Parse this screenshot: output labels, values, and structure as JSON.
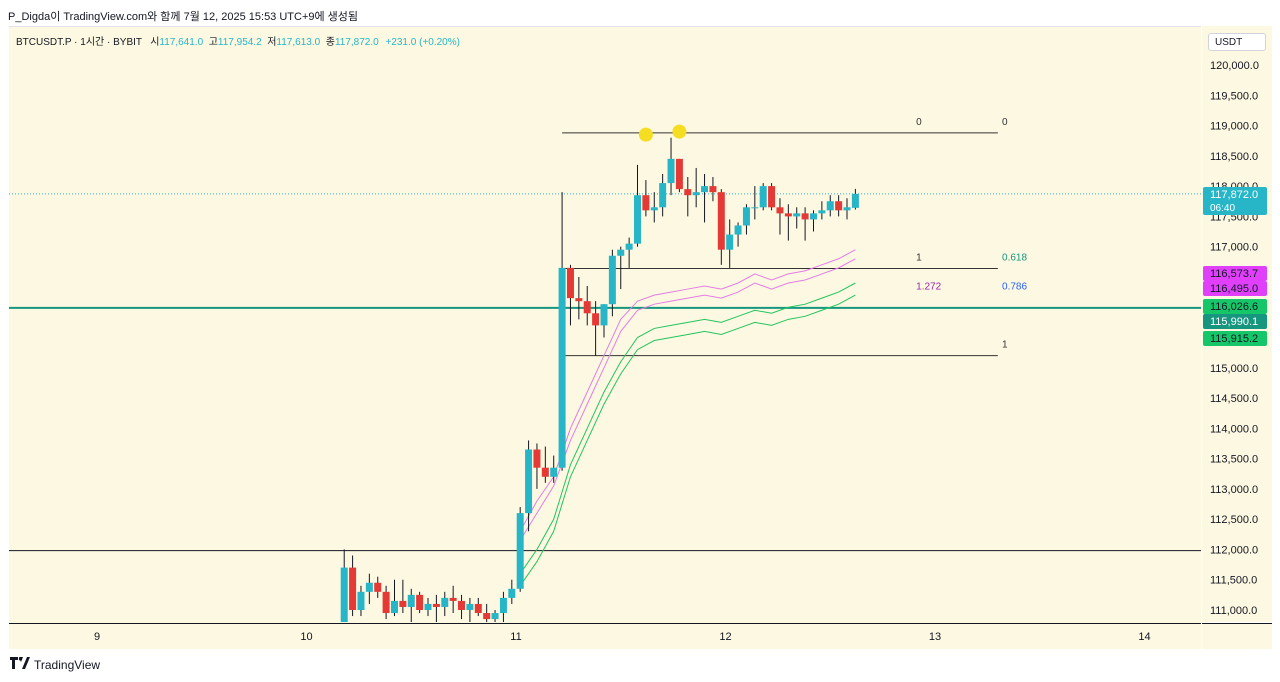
{
  "header": {
    "caption": "P_Digda이 TradingView.com와 함께 7월 12, 2025 15:53 UTC+9에 생성됨"
  },
  "legend": {
    "symbol": "BTCUSDT.P · 1시간 · BYBIT",
    "open_label": "시",
    "open": "117,641.0",
    "high_label": "고",
    "high": "117,954.2",
    "low_label": "저",
    "low": "117,613.0",
    "close_label": "종",
    "close": "117,872.0",
    "change": "+231.0 (+0.20%)"
  },
  "currency": "USDT",
  "footer": {
    "brand": "TradingView",
    "logo": "tradingview-logo-icon"
  },
  "colors": {
    "up": "#26b6c8",
    "down": "#e53935",
    "background": "#fdf8e1",
    "horizontal_line": "#16967f",
    "upper_band": "#e27ee6",
    "lower_band": "#22c55e",
    "marker": "#f5dd22",
    "fib_line": "#333333"
  },
  "chart_data": {
    "type": "candlestick",
    "title": "",
    "xlabel": "",
    "ylabel": "",
    "ylim": [
      110800,
      120400
    ],
    "x_ticks": [
      "9",
      "10",
      "11",
      "12",
      "13",
      "14"
    ],
    "y_ticks": [
      "111,000.0",
      "111,500.0",
      "112,000.0",
      "112,500.0",
      "113,000.0",
      "113,500.0",
      "114,000.0",
      "114,500.0",
      "115,000.0",
      "115,500.0",
      "116,000.0",
      "116,500.0",
      "117,000.0",
      "117,500.0",
      "118,000.0",
      "118,500.0",
      "119,000.0",
      "119,500.0",
      "120,000.0"
    ],
    "x_unit": "days, July 2025",
    "candles": [
      {
        "t": 10.18,
        "o": 110800,
        "h": 112000,
        "l": 110800,
        "c": 111700
      },
      {
        "t": 10.22,
        "o": 111700,
        "h": 111900,
        "l": 110900,
        "c": 111000
      },
      {
        "t": 10.26,
        "o": 111000,
        "h": 111400,
        "l": 110900,
        "c": 111300
      },
      {
        "t": 10.3,
        "o": 111300,
        "h": 111600,
        "l": 111100,
        "c": 111450
      },
      {
        "t": 10.34,
        "o": 111450,
        "h": 111550,
        "l": 111200,
        "c": 111300
      },
      {
        "t": 10.38,
        "o": 111300,
        "h": 111400,
        "l": 110850,
        "c": 110950
      },
      {
        "t": 10.42,
        "o": 110950,
        "h": 111500,
        "l": 110900,
        "c": 111150
      },
      {
        "t": 10.46,
        "o": 111150,
        "h": 111500,
        "l": 110950,
        "c": 111050
      },
      {
        "t": 10.5,
        "o": 111050,
        "h": 111350,
        "l": 110800,
        "c": 111250
      },
      {
        "t": 10.54,
        "o": 111250,
        "h": 111300,
        "l": 110950,
        "c": 111000
      },
      {
        "t": 10.58,
        "o": 111000,
        "h": 111200,
        "l": 110900,
        "c": 111100
      },
      {
        "t": 10.62,
        "o": 111100,
        "h": 111250,
        "l": 110800,
        "c": 111050
      },
      {
        "t": 10.66,
        "o": 111050,
        "h": 111300,
        "l": 110900,
        "c": 111200
      },
      {
        "t": 10.7,
        "o": 111200,
        "h": 111400,
        "l": 110950,
        "c": 111150
      },
      {
        "t": 10.74,
        "o": 111150,
        "h": 111250,
        "l": 110850,
        "c": 111000
      },
      {
        "t": 10.78,
        "o": 111000,
        "h": 111200,
        "l": 110800,
        "c": 111100
      },
      {
        "t": 10.82,
        "o": 111100,
        "h": 111200,
        "l": 110900,
        "c": 110950
      },
      {
        "t": 10.86,
        "o": 110950,
        "h": 111100,
        "l": 110700,
        "c": 110850
      },
      {
        "t": 10.9,
        "o": 110850,
        "h": 111000,
        "l": 110700,
        "c": 110950
      },
      {
        "t": 10.94,
        "o": 110950,
        "h": 111300,
        "l": 110800,
        "c": 111200
      },
      {
        "t": 10.98,
        "o": 111200,
        "h": 111500,
        "l": 111100,
        "c": 111350
      },
      {
        "t": 11.02,
        "o": 111350,
        "h": 112700,
        "l": 111300,
        "c": 112600
      },
      {
        "t": 11.06,
        "o": 112600,
        "h": 113800,
        "l": 112300,
        "c": 113650
      },
      {
        "t": 11.1,
        "o": 113650,
        "h": 113750,
        "l": 113000,
        "c": 113350
      },
      {
        "t": 11.14,
        "o": 113350,
        "h": 113700,
        "l": 113100,
        "c": 113200
      },
      {
        "t": 11.18,
        "o": 113200,
        "h": 113550,
        "l": 113100,
        "c": 113350
      },
      {
        "t": 11.22,
        "o": 113350,
        "h": 117900,
        "l": 113300,
        "c": 116650
      },
      {
        "t": 11.26,
        "o": 116650,
        "h": 116700,
        "l": 115700,
        "c": 116150
      },
      {
        "t": 11.3,
        "o": 116150,
        "h": 116500,
        "l": 115800,
        "c": 116100
      },
      {
        "t": 11.34,
        "o": 116100,
        "h": 116350,
        "l": 115700,
        "c": 115900
      },
      {
        "t": 11.38,
        "o": 115900,
        "h": 116100,
        "l": 115200,
        "c": 115700
      },
      {
        "t": 11.42,
        "o": 115700,
        "h": 116050,
        "l": 115500,
        "c": 116050
      },
      {
        "t": 11.46,
        "o": 116050,
        "h": 116950,
        "l": 115850,
        "c": 116850
      },
      {
        "t": 11.5,
        "o": 116850,
        "h": 117000,
        "l": 116300,
        "c": 116950
      },
      {
        "t": 11.54,
        "o": 116950,
        "h": 117150,
        "l": 116650,
        "c": 117050
      },
      {
        "t": 11.58,
        "o": 117050,
        "h": 118350,
        "l": 117000,
        "c": 117850
      },
      {
        "t": 11.62,
        "o": 117850,
        "h": 118100,
        "l": 117500,
        "c": 117600
      },
      {
        "t": 11.66,
        "o": 117600,
        "h": 117900,
        "l": 117400,
        "c": 117650
      },
      {
        "t": 11.7,
        "o": 117650,
        "h": 118200,
        "l": 117500,
        "c": 118050
      },
      {
        "t": 11.74,
        "o": 118050,
        "h": 118800,
        "l": 117850,
        "c": 118450
      },
      {
        "t": 11.78,
        "o": 118450,
        "h": 118450,
        "l": 117900,
        "c": 117950
      },
      {
        "t": 11.82,
        "o": 117950,
        "h": 118150,
        "l": 117500,
        "c": 117850
      },
      {
        "t": 11.86,
        "o": 117850,
        "h": 118300,
        "l": 117650,
        "c": 117900
      },
      {
        "t": 11.9,
        "o": 117900,
        "h": 118200,
        "l": 117400,
        "c": 118000
      },
      {
        "t": 11.94,
        "o": 118000,
        "h": 118150,
        "l": 117750,
        "c": 117900
      },
      {
        "t": 11.98,
        "o": 117900,
        "h": 117950,
        "l": 116700,
        "c": 116950
      },
      {
        "t": 12.02,
        "o": 116950,
        "h": 117450,
        "l": 116650,
        "c": 117200
      },
      {
        "t": 12.06,
        "o": 117200,
        "h": 117400,
        "l": 117000,
        "c": 117350
      },
      {
        "t": 12.1,
        "o": 117350,
        "h": 117700,
        "l": 117200,
        "c": 117650
      },
      {
        "t": 12.14,
        "o": 117650,
        "h": 118000,
        "l": 117450,
        "c": 117650
      },
      {
        "t": 12.18,
        "o": 117650,
        "h": 118050,
        "l": 117600,
        "c": 118000
      },
      {
        "t": 12.22,
        "o": 118000,
        "h": 118050,
        "l": 117600,
        "c": 117650
      },
      {
        "t": 12.26,
        "o": 117650,
        "h": 117800,
        "l": 117200,
        "c": 117550
      },
      {
        "t": 12.3,
        "o": 117550,
        "h": 117700,
        "l": 117100,
        "c": 117500
      },
      {
        "t": 12.34,
        "o": 117500,
        "h": 117650,
        "l": 117300,
        "c": 117550
      },
      {
        "t": 12.38,
        "o": 117550,
        "h": 117650,
        "l": 117100,
        "c": 117450
      },
      {
        "t": 12.42,
        "o": 117450,
        "h": 117600,
        "l": 117250,
        "c": 117550
      },
      {
        "t": 12.46,
        "o": 117550,
        "h": 117750,
        "l": 117450,
        "c": 117600
      },
      {
        "t": 12.5,
        "o": 117600,
        "h": 117850,
        "l": 117500,
        "c": 117750
      },
      {
        "t": 12.54,
        "o": 117750,
        "h": 117850,
        "l": 117500,
        "c": 117600
      },
      {
        "t": 12.58,
        "o": 117600,
        "h": 117800,
        "l": 117450,
        "c": 117650
      },
      {
        "t": 12.62,
        "o": 117641,
        "h": 117954,
        "l": 117613,
        "c": 117872
      }
    ],
    "upper_band": {
      "t": [
        11.02,
        11.1,
        11.18,
        11.26,
        11.34,
        11.42,
        11.5,
        11.58,
        11.66,
        11.74,
        11.82,
        11.9,
        11.98,
        12.06,
        12.14,
        12.22,
        12.3,
        12.38,
        12.46,
        12.54,
        12.62
      ],
      "outer": [
        112300,
        112800,
        113200,
        114000,
        114600,
        115200,
        115800,
        116100,
        116200,
        116250,
        116300,
        116350,
        116300,
        116400,
        116550,
        116450,
        116550,
        116600,
        116700,
        116800,
        116950
      ],
      "inner": [
        112150,
        112600,
        113050,
        113800,
        114400,
        115000,
        115600,
        115950,
        116050,
        116100,
        116150,
        116200,
        116150,
        116250,
        116400,
        116300,
        116400,
        116450,
        116550,
        116650,
        116800
      ]
    },
    "lower_band": {
      "t": [
        11.02,
        11.1,
        11.18,
        11.26,
        11.34,
        11.42,
        11.5,
        11.58,
        11.66,
        11.74,
        11.82,
        11.9,
        11.98,
        12.06,
        12.14,
        12.22,
        12.3,
        12.38,
        12.46,
        12.54,
        12.62
      ],
      "outer": [
        111600,
        112000,
        112500,
        113400,
        114000,
        114600,
        115100,
        115500,
        115650,
        115700,
        115750,
        115800,
        115750,
        115850,
        115950,
        115900,
        116000,
        116050,
        116150,
        116250,
        116400
      ],
      "inner": [
        111400,
        111800,
        112300,
        113200,
        113800,
        114400,
        114900,
        115300,
        115450,
        115500,
        115550,
        115600,
        115550,
        115650,
        115750,
        115700,
        115800,
        115850,
        115950,
        116050,
        116200
      ]
    },
    "markers": [
      {
        "t": 11.62,
        "price": 118850
      },
      {
        "t": 11.78,
        "price": 118900
      }
    ],
    "horizontal_lines": [
      {
        "price": 115990.1,
        "color": "#16967f"
      },
      {
        "price": 111980,
        "color": "#131722"
      }
    ],
    "fib_lines": [
      {
        "price": 118880,
        "t_start": 11.22,
        "t_end": 13.3,
        "labels": [
          {
            "t": 12.91,
            "text": "0",
            "color": "#333333"
          },
          {
            "t": 13.32,
            "text": "0",
            "color": "#333333"
          }
        ]
      },
      {
        "price": 116640,
        "t_start": 11.22,
        "t_end": 13.3,
        "labels": [
          {
            "t": 12.91,
            "text": "1",
            "color": "#333333"
          },
          {
            "t": 13.32,
            "text": "0.618",
            "color": "#16967f"
          }
        ]
      },
      {
        "price": 115200,
        "t_start": 11.22,
        "t_end": 13.3,
        "labels": [
          {
            "t": 13.32,
            "text": "1",
            "color": "#333333"
          }
        ]
      }
    ],
    "fib_extra_labels": [
      {
        "t": 12.91,
        "price": 116160,
        "text": "1.272",
        "color": "#9c27b0"
      },
      {
        "t": 13.32,
        "price": 116160,
        "text": "0.786",
        "color": "#2962ff"
      }
    ],
    "last_price_line": {
      "price": 117872.0,
      "color": "#26b6c8"
    },
    "price_tags": [
      {
        "price": 117872.0,
        "text": "117,872.0",
        "sub": "06:40",
        "bg": "#26b6c8",
        "fg": "#ffffff"
      },
      {
        "price": 116573.7,
        "text": "116,573.7",
        "bg": "#e040fb",
        "fg": "#131722"
      },
      {
        "price": 116495.0,
        "text": "116,495.0",
        "bg": "#e040fb",
        "fg": "#131722"
      },
      {
        "price": 116026.6,
        "text": "116,026.6",
        "bg": "#16c76a",
        "fg": "#131722"
      },
      {
        "price": 115990.1,
        "text": "115,990.1",
        "bg": "#16967f",
        "fg": "#ffffff"
      },
      {
        "price": 115915.2,
        "text": "115,915.2",
        "bg": "#16c76a",
        "fg": "#131722"
      }
    ]
  }
}
